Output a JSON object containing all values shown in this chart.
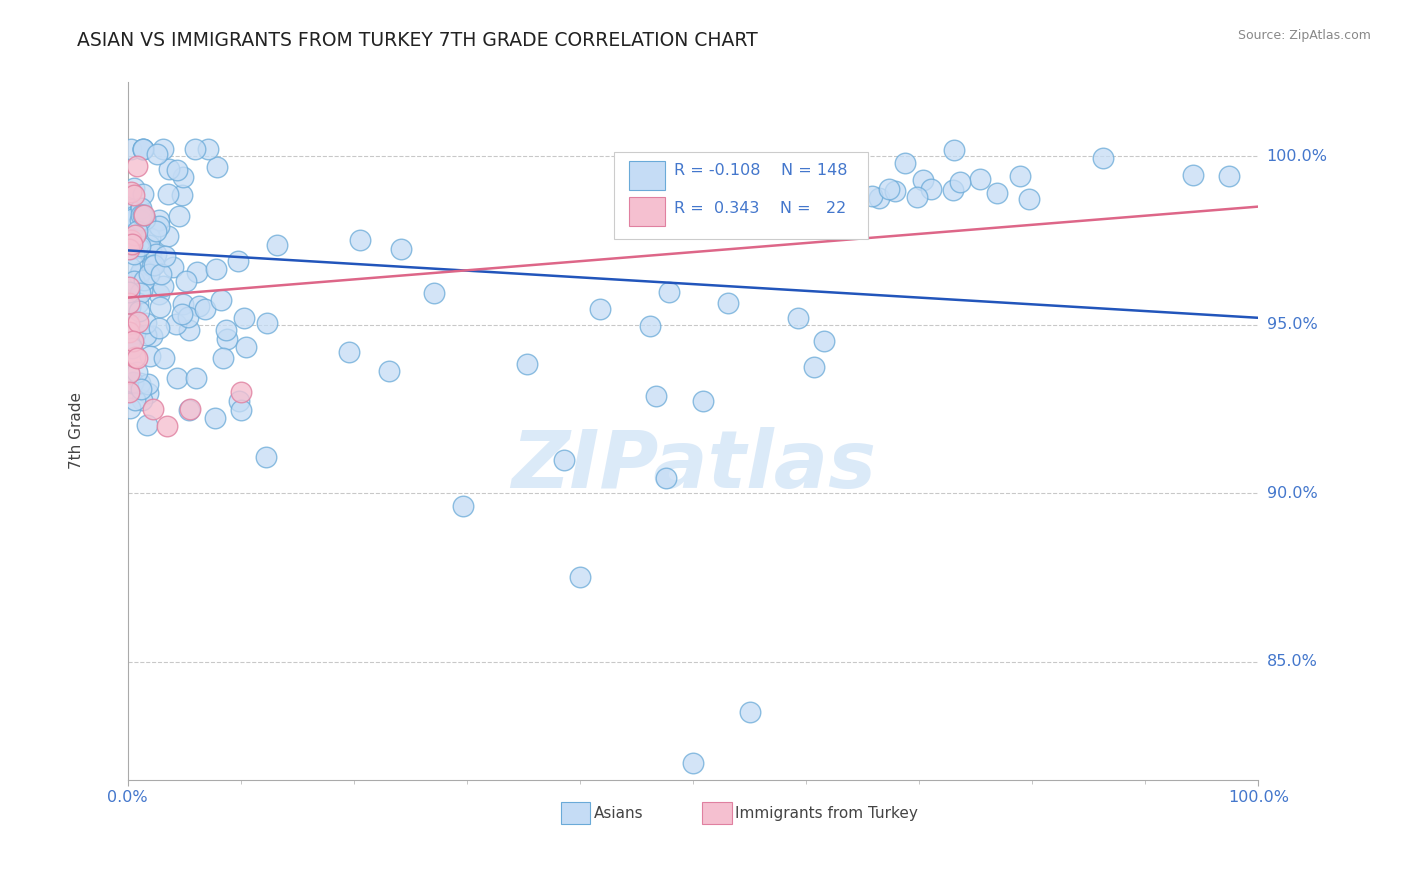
{
  "title": "ASIAN VS IMMIGRANTS FROM TURKEY 7TH GRADE CORRELATION CHART",
  "source": "Source: ZipAtlas.com",
  "ylabel": "7th Grade",
  "y_tick_labels": [
    "85.0%",
    "90.0%",
    "95.0%",
    "100.0%"
  ],
  "y_tick_values": [
    0.85,
    0.9,
    0.95,
    1.0
  ],
  "x_lim": [
    0.0,
    1.0
  ],
  "y_lim": [
    0.815,
    1.022
  ],
  "legend_blue_r": "-0.108",
  "legend_blue_n": "148",
  "legend_pink_r": "0.343",
  "legend_pink_n": "22",
  "blue_face": "#C5DCF5",
  "blue_edge": "#6AAAD8",
  "pink_face": "#F5C0D0",
  "pink_edge": "#E080A0",
  "trend_blue_color": "#2255BB",
  "trend_pink_color": "#DD6688",
  "grid_color": "#BBBBBB",
  "label_color": "#4477CC",
  "text_color": "#444444",
  "watermark_color": "#D8E8F8",
  "blue_trend_y0": 0.972,
  "blue_trend_y1": 0.952,
  "pink_trend_y0": 0.958,
  "pink_trend_y1": 0.985
}
